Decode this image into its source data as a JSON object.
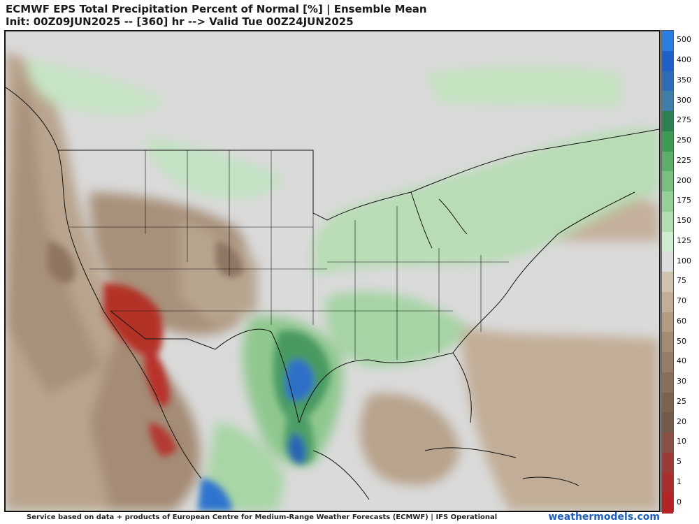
{
  "header": {
    "title_line1": "ECMWF EPS Total Precipitation Percent of Normal [%] | Ensemble Mean",
    "title_line2": "Init: 00Z09JUN2025 -- [360] hr --> Valid Tue 00Z24JUN2025"
  },
  "legend": {
    "labels": [
      "500",
      "400",
      "350",
      "300",
      "275",
      "250",
      "225",
      "200",
      "175",
      "150",
      "125",
      "100",
      "75",
      "70",
      "60",
      "50",
      "40",
      "30",
      "25",
      "20",
      "10",
      "5",
      "1",
      "0"
    ],
    "colors": [
      "#2b7de0",
      "#1f5fc8",
      "#2f6cb8",
      "#3d7fa8",
      "#2f8050",
      "#3f9a55",
      "#5aae68",
      "#79c080",
      "#96d099",
      "#b0deb2",
      "#cdebcd",
      "#dcdcdc",
      "#d0c2b0",
      "#c2ad96",
      "#b39a80",
      "#a68b72",
      "#987c65",
      "#8a6e5a",
      "#7d6250",
      "#725a4c",
      "#8a5046",
      "#9b3a36",
      "#a8302c",
      "#b52424"
    ]
  },
  "map": {
    "region": "North America",
    "land_color": "#d9d9d9",
    "ocean_color": "#d7d7d7"
  },
  "footer": {
    "credit": "Service based on data + products of European Centre for Medium-Range Weather Forecasts (ECMWF) | IFS Operational",
    "brand": "weathermodels.com"
  }
}
